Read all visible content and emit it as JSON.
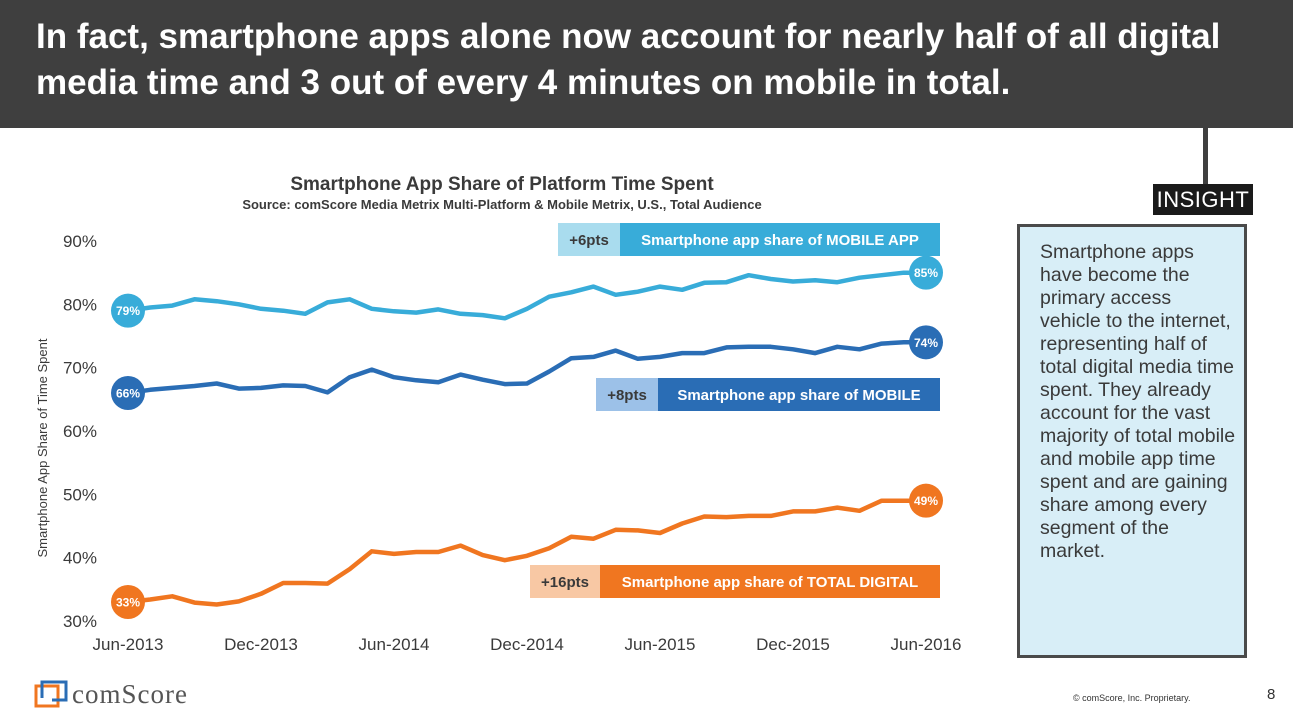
{
  "header": {
    "title": "In fact, smartphone apps alone now account for nearly half of all digital media time and 3 out of every 4 minutes on mobile in total."
  },
  "chart_data": {
    "type": "line",
    "title": "Smartphone App Share of Platform Time Spent",
    "subtitle": "Source: comScore Media Metrix Multi-Platform & Mobile Metrix, U.S., Total Audience",
    "ylabel": "Smartphone App Share of Time Spent",
    "ylim": [
      30,
      90
    ],
    "y_ticks": [
      "30%",
      "40%",
      "50%",
      "60%",
      "70%",
      "80%",
      "90%"
    ],
    "y_tick_values": [
      30,
      40,
      50,
      60,
      70,
      80,
      90
    ],
    "x_tick_labels": [
      "Jun-2013",
      "Dec-2013",
      "Jun-2014",
      "Dec-2014",
      "Jun-2015",
      "Dec-2015",
      "Jun-2016"
    ],
    "x_tick_index": [
      0,
      6,
      12,
      18,
      24,
      30,
      36
    ],
    "series": [
      {
        "name": "Smartphone app share of MOBILE APP",
        "color": "#38acd9",
        "change": "+6pts",
        "start_label": "79%",
        "end_label": "85%",
        "values": [
          79,
          79.5,
          79.8,
          80.8,
          80.5,
          80.0,
          79.3,
          79.0,
          78.5,
          80.3,
          80.8,
          79.3,
          78.9,
          78.7,
          79.2,
          78.5,
          78.3,
          77.8,
          79.3,
          81.2,
          81.9,
          82.8,
          81.5,
          82.0,
          82.8,
          82.3,
          83.4,
          83.5,
          84.6,
          84.0,
          83.6,
          83.8,
          83.5,
          84.2,
          84.6,
          85,
          85
        ]
      },
      {
        "name": "Smartphone app share of MOBILE",
        "color": "#2a6db5",
        "change": "+8pts",
        "start_label": "66%",
        "end_label": "74%",
        "values": [
          66,
          66.5,
          66.8,
          67.1,
          67.5,
          66.7,
          66.8,
          67.2,
          67.1,
          66.1,
          68.5,
          69.7,
          68.5,
          68.0,
          67.7,
          68.9,
          68.1,
          67.4,
          67.5,
          69.4,
          71.5,
          71.7,
          72.7,
          71.4,
          71.7,
          72.3,
          72.3,
          73.2,
          73.3,
          73.3,
          72.9,
          72.3,
          73.3,
          72.9,
          73.8,
          74,
          74
        ]
      },
      {
        "name": "Smartphone app share of TOTAL DIGITAL",
        "color": "#f07620",
        "change": "+16pts",
        "start_label": "33%",
        "end_label": "49%",
        "values": [
          33,
          33.4,
          33.9,
          32.9,
          32.6,
          33.1,
          34.3,
          36.0,
          36.0,
          35.9,
          38.2,
          41.0,
          40.6,
          40.9,
          40.9,
          41.9,
          40.4,
          39.6,
          40.3,
          41.5,
          43.3,
          43.0,
          44.4,
          44.3,
          43.9,
          45.4,
          46.5,
          46.4,
          46.6,
          46.6,
          47.3,
          47.3,
          47.9,
          47.4,
          49,
          49,
          49
        ]
      }
    ]
  },
  "insight": {
    "tag": "INSIGHT",
    "text": "Smartphone apps have become the primary access vehicle to the internet, representing half of total digital media time spent. They already account for the vast majority of total mobile and mobile app time spent and are gaining share among every segment of the market."
  },
  "footer": {
    "logo_text": "comScore",
    "copyright": "© comScore, Inc. Proprietary.",
    "page_number": "8"
  }
}
